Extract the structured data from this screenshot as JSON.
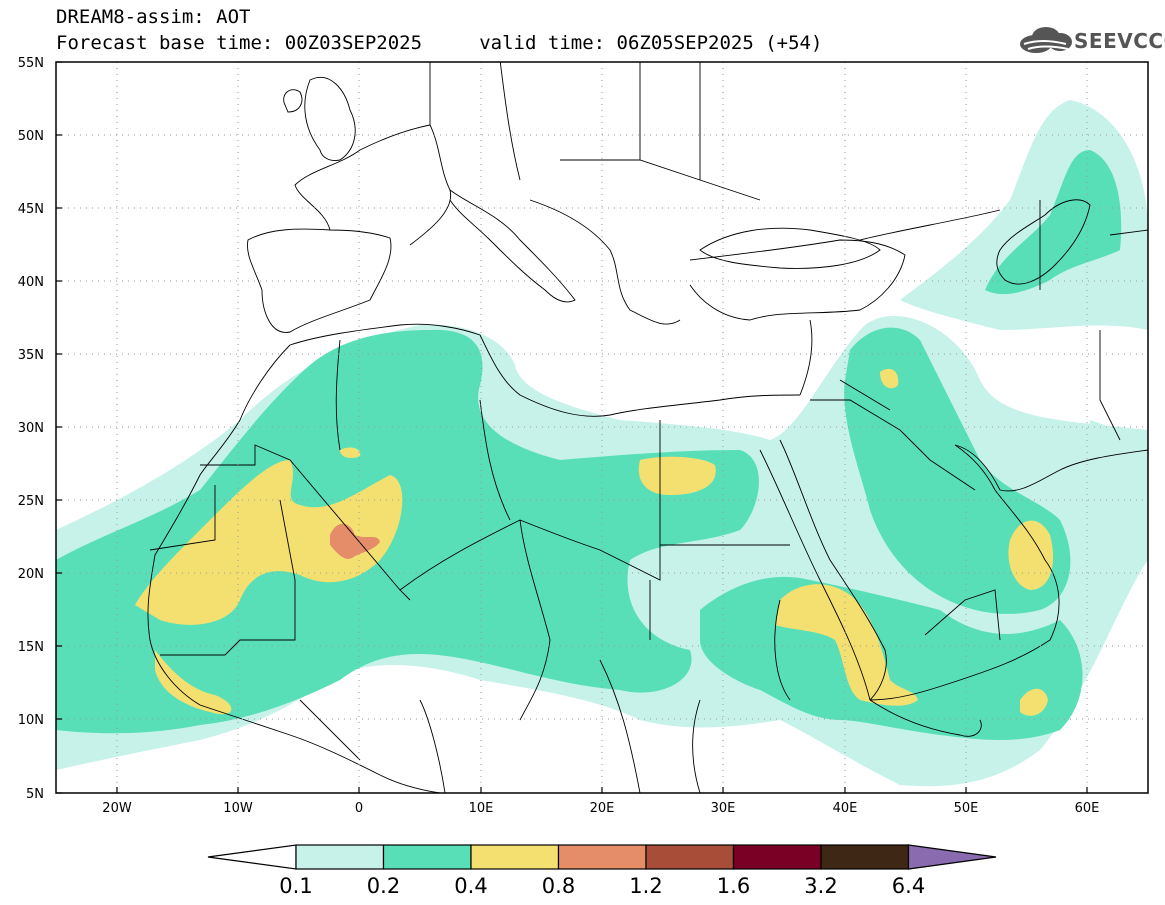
{
  "header": {
    "line1": "DREAM8-assim: AOT",
    "line2": "Forecast base time: 00Z03SEP2025     valid time: 06Z05SEP2025 (+54)"
  },
  "logo": {
    "text": "SEEVCCC",
    "icon": "cloud-icon"
  },
  "map": {
    "lat_labels": [
      "55N",
      "50N",
      "45N",
      "40N",
      "35N",
      "30N",
      "25N",
      "20N",
      "15N",
      "10N",
      "5N"
    ],
    "lon_labels": [
      "20W",
      "10W",
      "0",
      "10E",
      "20E",
      "30E",
      "40E",
      "50E",
      "60E"
    ]
  },
  "colorbar": {
    "labels": [
      "0.1",
      "0.2",
      "0.4",
      "0.8",
      "1.2",
      "1.6",
      "3.2",
      "6.4"
    ],
    "colors": [
      "#c6f2ea",
      "#59dfb8",
      "#f4e070",
      "#e58c68",
      "#a84d38",
      "#7a0026",
      "#3e2714",
      "#8a6bb0"
    ]
  }
}
